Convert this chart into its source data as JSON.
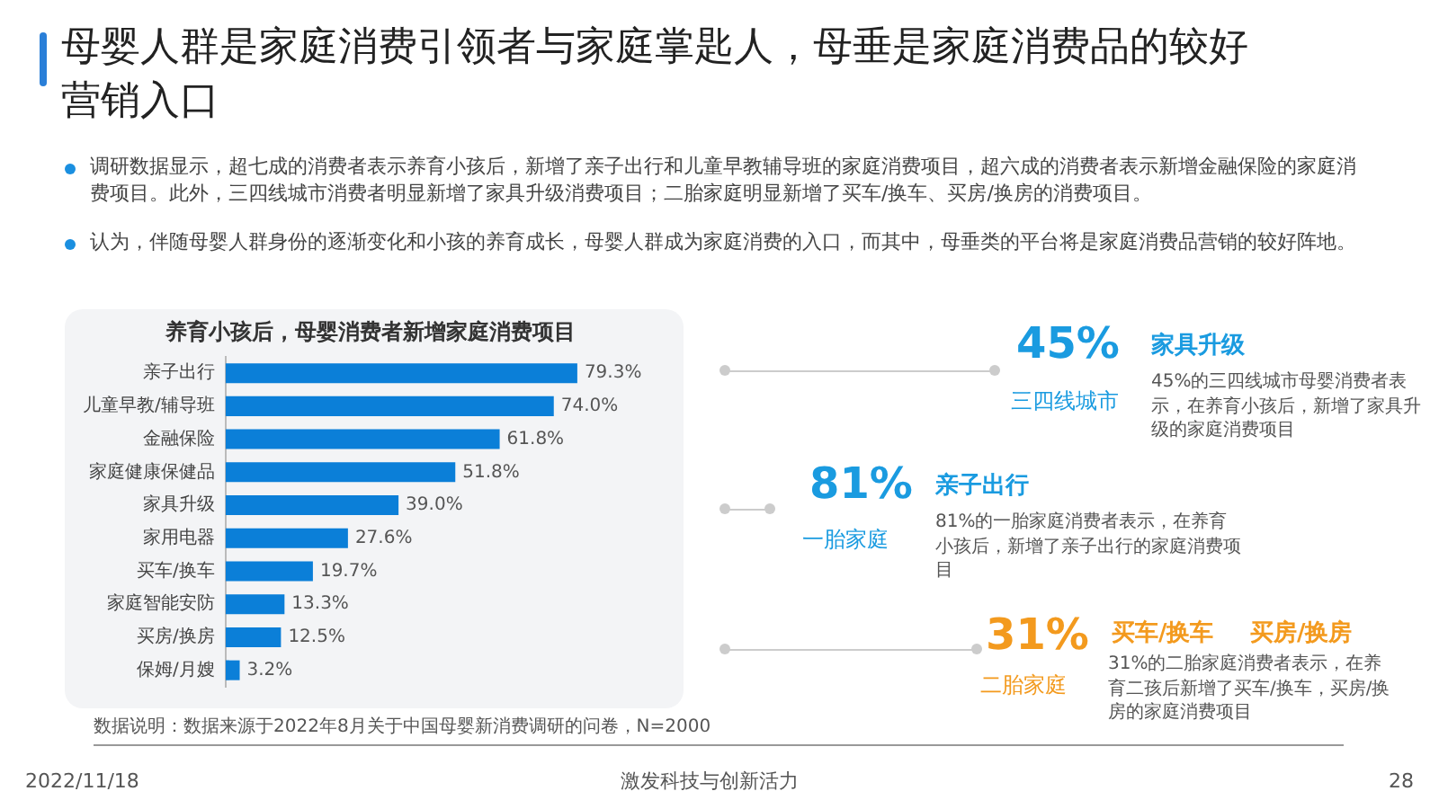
{
  "chart_data": [
    {
      "type": "bar",
      "orientation": "horizontal",
      "title": "养育小孩后，母婴消费者新增家庭消费项目",
      "categories": [
        "亲子出行",
        "儿童早教/辅导班",
        "金融保险",
        "家庭健康保健品",
        "家具升级",
        "家用电器",
        "买车/换车",
        "家庭智能安防",
        "买房/换房",
        "保姆/月嫂"
      ],
      "values": [
        79.3,
        74.0,
        61.8,
        51.8,
        39.0,
        27.6,
        19.7,
        13.3,
        12.5,
        3.2
      ],
      "value_labels": [
        "79.3%",
        "74.0%",
        "61.8%",
        "51.8%",
        "39.0%",
        "27.6%",
        "19.7%",
        "13.3%",
        "12.5%",
        "3.2%"
      ],
      "color": "#0b7fd8",
      "tick_labels": "y",
      "grid": false,
      "legend": false,
      "annotations": [
        "母婴人群是家庭消费引领者与家庭掌匙人，母垂是家庭消费品的较好营销入口",
        "调研数据显示，超七成的消费者表示养育小孩后，新增了亲子出行和儿童早教辅导班的家庭消费项目，超六成的消费者表示新增金融保险的家庭消费项目。此外，三四线城市消费者明显新增了家具升级消费项目；二胎家庭明显新增了买车/换车、买房/换房的消费项目。",
        "认为，伴随母婴人群身份的逐渐变化和小孩的养育成长，母婴人群成为家庭消费的入口，而其中，母垂类的平台将是家庭消费品营销的较好阵地。",
        "数据说明：数据来源于2022年8月关于中国母婴新消费调研的问卷，N=2000",
        "2022/11/18",
        "激发科技与创新活力",
        "28"
      ]
    },
    {
      "type": "other",
      "annotations": [
        "45%",
        "三四线城市",
        "家具升级",
        "45%的三四线城市母婴消费者表示，在养育小孩后，新增了家具升级的家庭消费项目",
        "81%",
        "一胎家庭",
        "亲子出行",
        "81%的一胎家庭消费者表示，在养育小孩后，新增了亲子出行的家庭消费项目",
        "31%",
        "二胎家庭",
        "买车/换车",
        "买房/换房",
        "31%的二胎家庭消费者表示，在养育二孩后新增了买车/换车，买房/换房的家庭消费项目"
      ],
      "colors": [
        "#1a9be0",
        "#1a9be0",
        "#1a9be0",
        "#555555",
        "#1a9be0",
        "#1a9be0",
        "#1a9be0",
        "#555555",
        "#f39a1e",
        "#f39a1e",
        "#f39a1e",
        "#f39a1e",
        "#555555"
      ]
    }
  ]
}
